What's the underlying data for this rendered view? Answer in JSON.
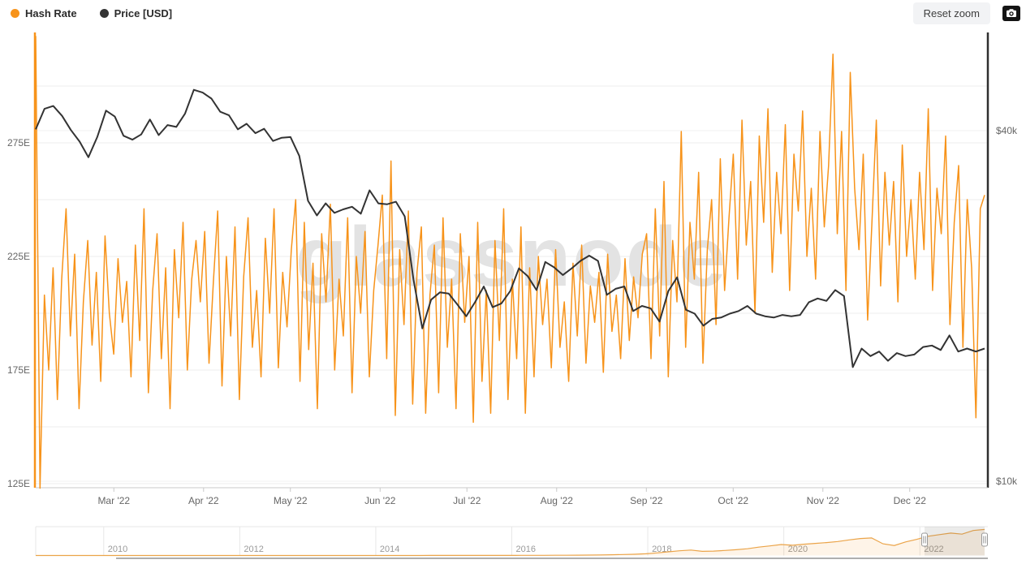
{
  "legend": {
    "items": [
      {
        "label": "Hash Rate",
        "color": "#f7931a"
      },
      {
        "label": "Price [USD]",
        "color": "#333333"
      }
    ]
  },
  "toolbar": {
    "reset_zoom_label": "Reset zoom",
    "camera_icon": "camera-icon"
  },
  "watermark": "glassnode",
  "chart_data": {
    "type": "line",
    "title": "",
    "x_range": [
      "Feb 2022",
      "Dec 2022"
    ],
    "x_axis": {
      "labels": [
        "Mar '22",
        "Apr '22",
        "May '22",
        "Jun '22",
        "Jul '22",
        "Aug '22",
        "Sep '22",
        "Oct '22",
        "Nov '22",
        "Dec '22"
      ],
      "label_day_offsets": [
        27,
        58,
        88,
        119,
        149,
        180,
        211,
        241,
        272,
        302
      ],
      "total_days": 329
    },
    "left_axis": {
      "title": "Hash Rate",
      "unit": "EH/s",
      "scale": "linear",
      "tick_labels": [
        "275E",
        "225E",
        "175E",
        "125E"
      ],
      "tick_values": [
        275,
        225,
        175,
        125
      ],
      "grid_values": [
        300,
        275,
        250,
        225,
        200,
        175,
        150,
        125
      ],
      "axis_color": "#f7931a"
    },
    "right_axis": {
      "title": "Price [USD]",
      "unit": "USD (thousands)",
      "scale": "log",
      "tick_labels": [
        "$40k",
        "$10k"
      ],
      "tick_values": [
        40,
        10
      ],
      "axis_color": "#2f2f2f"
    },
    "grid": true,
    "legend_position": "top-left",
    "series": [
      {
        "name": "Hash Rate",
        "axis": "left",
        "unit": "EH/s",
        "color": "#f7931a",
        "values": [
          322,
          123,
          208,
          175,
          220,
          162,
          215,
          246,
          190,
          226,
          158,
          205,
          232,
          186,
          218,
          170,
          234,
          200,
          182,
          224,
          196,
          214,
          172,
          230,
          188,
          246,
          165,
          210,
          235,
          180,
          220,
          158,
          228,
          198,
          240,
          175,
          215,
          232,
          205,
          236,
          178,
          214,
          245,
          168,
          225,
          190,
          238,
          162,
          216,
          242,
          185,
          210,
          172,
          233,
          200,
          246,
          176,
          218,
          194,
          228,
          250,
          170,
          240,
          184,
          222,
          158,
          235,
          205,
          248,
          175,
          215,
          190,
          242,
          165,
          225,
          200,
          236,
          172,
          210,
          230,
          252,
          180,
          267,
          155,
          228,
          195,
          245,
          160,
          218,
          238,
          156,
          208,
          230,
          165,
          242,
          185,
          215,
          158,
          235,
          196,
          225,
          152,
          240,
          170,
          210,
          156,
          232,
          188,
          246,
          162,
          215,
          180,
          238,
          156,
          220,
          172,
          225,
          195,
          215,
          176,
          228,
          185,
          205,
          170,
          222,
          190,
          230,
          178,
          212,
          196,
          218,
          174,
          226,
          192,
          208,
          180,
          224,
          188,
          216,
          198,
          226,
          235,
          180,
          246,
          190,
          258,
          172,
          232,
          205,
          280,
          185,
          240,
          215,
          262,
          178,
          228,
          250,
          195,
          268,
          210,
          242,
          270,
          215,
          285,
          230,
          258,
          200,
          278,
          240,
          290,
          218,
          262,
          235,
          283,
          210,
          270,
          245,
          289,
          225,
          255,
          215,
          280,
          238,
          265,
          314,
          235,
          280,
          210,
          306,
          255,
          228,
          270,
          197,
          240,
          285,
          212,
          262,
          230,
          258,
          205,
          274,
          225,
          250,
          215,
          262,
          228,
          290,
          210,
          255,
          235,
          278,
          195,
          240,
          265,
          185,
          250,
          220,
          154,
          246,
          252
        ]
      },
      {
        "name": "Price [USD]",
        "axis": "right",
        "unit": "USD (thousands)",
        "color": "#333333",
        "values": [
          40.2,
          43.6,
          44.1,
          42.4,
          40.1,
          38.3,
          36.0,
          39.0,
          43.3,
          42.3,
          39.2,
          38.6,
          39.4,
          41.8,
          39.3,
          40.9,
          40.6,
          42.8,
          47.0,
          46.5,
          45.4,
          43.1,
          42.5,
          40.2,
          41.1,
          39.6,
          40.3,
          38.4,
          38.9,
          39.0,
          36.2,
          30.3,
          28.6,
          30.0,
          28.9,
          29.3,
          29.6,
          28.8,
          31.6,
          30.0,
          29.9,
          30.2,
          28.5,
          22.2,
          18.3,
          20.5,
          21.1,
          21.0,
          20.1,
          19.2,
          20.3,
          21.6,
          19.9,
          20.2,
          21.2,
          23.2,
          22.5,
          21.3,
          23.8,
          23.3,
          22.6,
          23.2,
          23.9,
          24.4,
          23.9,
          20.9,
          21.4,
          21.6,
          19.6,
          20.0,
          19.8,
          18.8,
          21.2,
          22.4,
          19.7,
          19.4,
          18.5,
          19.0,
          19.1,
          19.4,
          19.6,
          20.0,
          19.4,
          19.2,
          19.1,
          19.3,
          19.2,
          19.3,
          20.3,
          20.6,
          20.4,
          21.3,
          20.8,
          15.7,
          16.9,
          16.4,
          16.7,
          16.1,
          16.6,
          16.4,
          16.5,
          17.0,
          17.1,
          16.8,
          17.8,
          16.7,
          16.9,
          16.7,
          16.9
        ]
      }
    ]
  },
  "navigator": {
    "year_labels": [
      "2010",
      "2012",
      "2014",
      "2016",
      "2018",
      "2020",
      "2022"
    ],
    "year_values": [
      2010,
      2012,
      2014,
      2016,
      2018,
      2020,
      2022
    ],
    "start_year": 2009,
    "end_year": 2023,
    "selected_range": {
      "from": "Feb 2022",
      "to": "Dec 2022"
    },
    "series": {
      "name": "Hash Rate (all time)",
      "unit": "EH/s",
      "color": "#eba449",
      "values": [
        0,
        0,
        0,
        0,
        0,
        0,
        0,
        0,
        0,
        0,
        0,
        0,
        0,
        0,
        0,
        0,
        0,
        0,
        0,
        0,
        0,
        0,
        0,
        0,
        0.1,
        0.1,
        0.1,
        0.1,
        0.2,
        0.2,
        0.3,
        0.3,
        0.3,
        0.3,
        0.3,
        0.4,
        0.4,
        0.4,
        0.5,
        0.5,
        0.6,
        0.7,
        1,
        1.2,
        1.5,
        1.8,
        2.1,
        2.4,
        3,
        4,
        5,
        7,
        9,
        12,
        16,
        25,
        35,
        45,
        52,
        40,
        42,
        48,
        55,
        65,
        80,
        92,
        105,
        98,
        108,
        116,
        124,
        134,
        150,
        163,
        168,
        112,
        96,
        130,
        155,
        185,
        200,
        215,
        205,
        240,
        250
      ]
    }
  }
}
